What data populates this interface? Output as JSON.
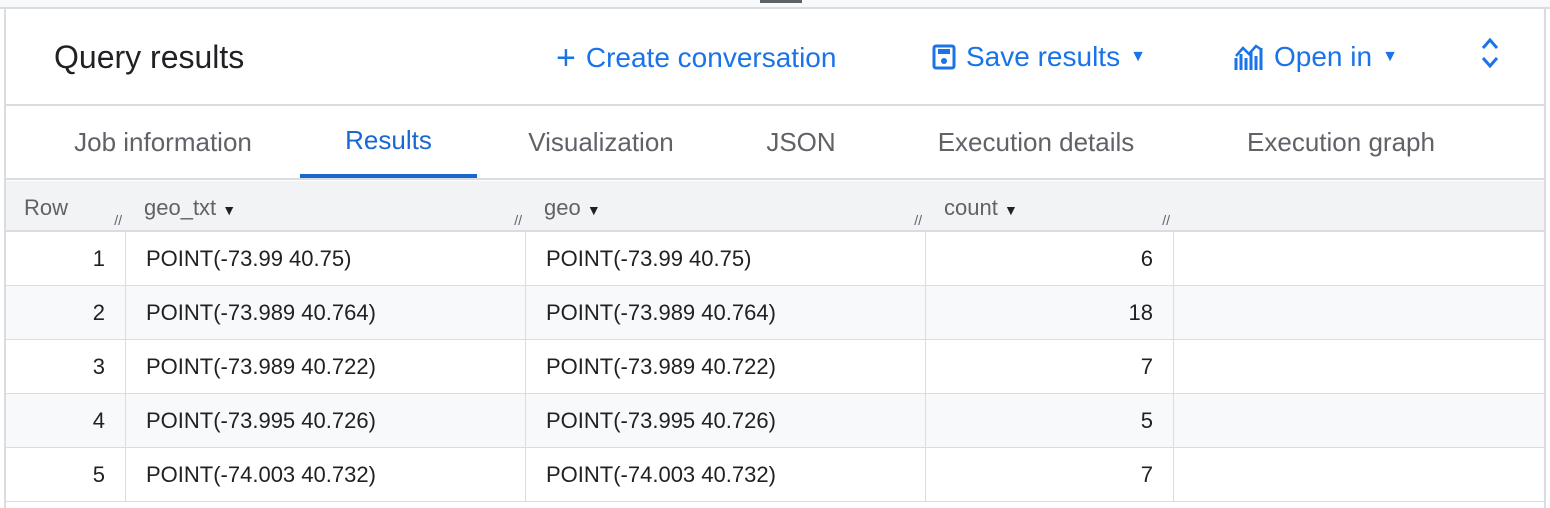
{
  "header": {
    "title": "Query results",
    "create_conversation": "Create conversation",
    "save_results": "Save results",
    "open_in": "Open in"
  },
  "tabs": [
    "Job information",
    "Results",
    "Visualization",
    "JSON",
    "Execution details",
    "Execution graph"
  ],
  "active_tab": "Results",
  "columns": [
    "Row",
    "geo_txt",
    "geo",
    "count"
  ],
  "rows": [
    [
      "1",
      "POINT(-73.99 40.75)",
      "POINT(-73.99 40.75)",
      "6"
    ],
    [
      "2",
      "POINT(-73.989 40.764)",
      "POINT(-73.989 40.764)",
      "18"
    ],
    [
      "3",
      "POINT(-73.989 40.722)",
      "POINT(-73.989 40.722)",
      "7"
    ],
    [
      "4",
      "POINT(-73.995 40.726)",
      "POINT(-73.995 40.726)",
      "5"
    ],
    [
      "5",
      "POINT(-74.003 40.732)",
      "POINT(-74.003 40.732)",
      "7"
    ]
  ],
  "colors": {
    "accent": "#1a73e8"
  }
}
